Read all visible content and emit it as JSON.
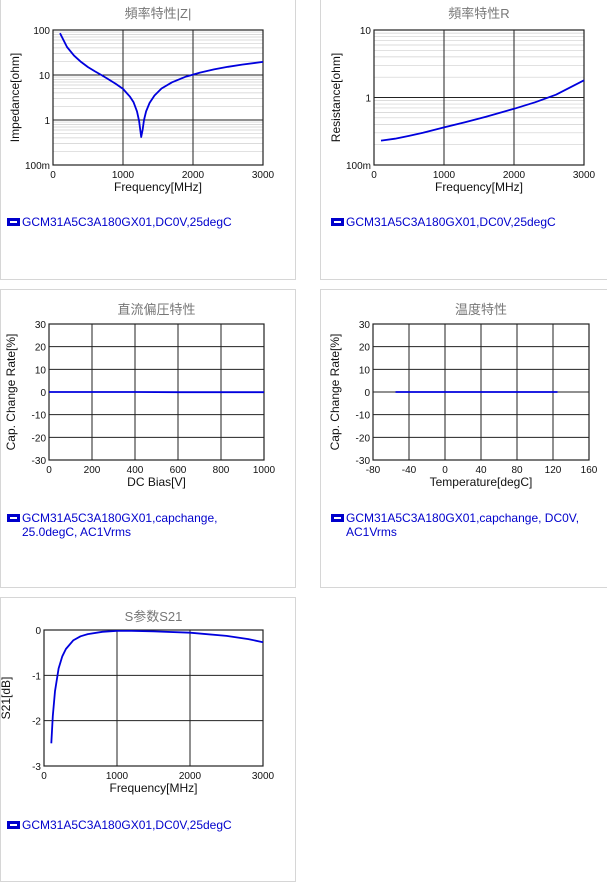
{
  "chart_data": [
    {
      "type": "line",
      "title": "頻率特性|Z|",
      "xlabel": "Frequency[MHz]",
      "ylabel": "Impedance[ohm]",
      "xlim": [
        0,
        3000
      ],
      "ylim": [
        0.1,
        100
      ],
      "yscale": "log",
      "xticks": [
        "0",
        "1000",
        "2000",
        "3000"
      ],
      "yticks": [
        "100m",
        "1",
        "10",
        "100"
      ],
      "ytick_values": [
        0.1,
        1,
        10,
        100
      ],
      "grid": true,
      "series": [
        {
          "name": "GCM31A5C3A180GX01,DC0V,25degC",
          "color": "#0000dd",
          "x": [
            100,
            200,
            300,
            400,
            500,
            600,
            700,
            800,
            900,
            1000,
            1100,
            1150,
            1200,
            1230,
            1260,
            1280,
            1300,
            1330,
            1380,
            1450,
            1550,
            1700,
            1900,
            2100,
            2300,
            2500,
            2700,
            3000
          ],
          "y": [
            85,
            42,
            27,
            19.5,
            15,
            12,
            9.8,
            7.9,
            6.3,
            4.9,
            3.3,
            2.5,
            1.55,
            0.95,
            0.42,
            0.6,
            1.0,
            1.55,
            2.4,
            3.5,
            5.0,
            6.9,
            9.2,
            11.3,
            13.3,
            15.2,
            17.0,
            19.5
          ]
        }
      ]
    },
    {
      "type": "line",
      "title": "頻率特性R",
      "xlabel": "Frequency[MHz]",
      "ylabel": "Resistance[ohm]",
      "xlim": [
        0,
        3000
      ],
      "ylim": [
        0.1,
        10
      ],
      "yscale": "log",
      "xticks": [
        "0",
        "1000",
        "2000",
        "3000"
      ],
      "yticks": [
        "100m",
        "1",
        "10"
      ],
      "ytick_values": [
        0.1,
        1,
        10
      ],
      "grid": true,
      "series": [
        {
          "name": "GCM31A5C3A180GX01,DC0V,25degC",
          "color": "#0000dd",
          "x": [
            100,
            300,
            500,
            700,
            1000,
            1300,
            1600,
            2000,
            2300,
            2600,
            3000
          ],
          "y": [
            0.23,
            0.245,
            0.27,
            0.3,
            0.36,
            0.43,
            0.52,
            0.68,
            0.85,
            1.1,
            1.8
          ]
        }
      ]
    },
    {
      "type": "line",
      "title": "直流偏圧特性",
      "xlabel": "DC Bias[V]",
      "ylabel": "Cap. Change Rate[%]",
      "xlim": [
        0,
        1000
      ],
      "ylim": [
        -30,
        30
      ],
      "xticks": [
        "0",
        "200",
        "400",
        "600",
        "800",
        "1000"
      ],
      "yticks": [
        "-30",
        "-20",
        "-10",
        "0",
        "10",
        "20",
        "30"
      ],
      "grid": true,
      "series": [
        {
          "name": "GCM31A5C3A180GX01,capchange, 25.0degC, AC1Vrms",
          "color": "#0000dd",
          "x": [
            0,
            200,
            400,
            600,
            800,
            1000
          ],
          "y": [
            0,
            0,
            0,
            -0.1,
            -0.1,
            -0.1
          ]
        }
      ]
    },
    {
      "type": "line",
      "title": "温度特性",
      "xlabel": "Temperature[degC]",
      "ylabel": "Cap. Change Rate[%]",
      "xlim": [
        -80,
        160
      ],
      "ylim": [
        -30,
        30
      ],
      "xticks": [
        "-80",
        "-40",
        "0",
        "40",
        "80",
        "120",
        "160"
      ],
      "yticks": [
        "-30",
        "-20",
        "-10",
        "0",
        "10",
        "20",
        "30"
      ],
      "grid": true,
      "series": [
        {
          "name": "GCM31A5C3A180GX01,capchange, DC0V, AC1Vrms",
          "color": "#0000dd",
          "x": [
            -55,
            -20,
            25,
            60,
            100,
            125
          ],
          "y": [
            0,
            0,
            0,
            0,
            0,
            0
          ]
        }
      ]
    },
    {
      "type": "line",
      "title": "S参数S21",
      "xlabel": "Frequency[MHz]",
      "ylabel": "S21[dB]",
      "xlim": [
        0,
        3000
      ],
      "ylim": [
        -3,
        0
      ],
      "xticks": [
        "0",
        "1000",
        "2000",
        "3000"
      ],
      "yticks": [
        "-3",
        "-2",
        "-1",
        "0"
      ],
      "grid": true,
      "series": [
        {
          "name": "GCM31A5C3A180GX01,DC0V,25degC",
          "color": "#0000dd",
          "x": [
            100,
            120,
            150,
            200,
            250,
            300,
            400,
            500,
            600,
            800,
            1000,
            1200,
            1500,
            2000,
            2500,
            2800,
            3000
          ],
          "y": [
            -2.5,
            -1.9,
            -1.35,
            -0.85,
            -0.58,
            -0.42,
            -0.23,
            -0.14,
            -0.09,
            -0.04,
            -0.02,
            -0.02,
            -0.03,
            -0.06,
            -0.13,
            -0.2,
            -0.27
          ]
        }
      ]
    }
  ]
}
